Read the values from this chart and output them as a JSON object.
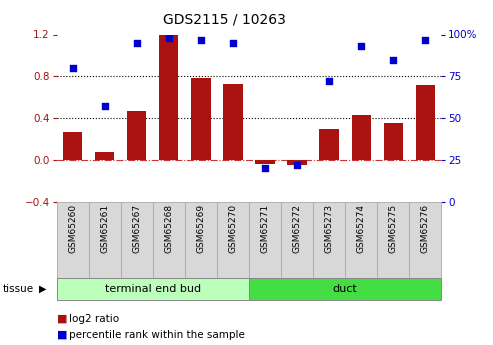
{
  "title": "GDS2115 / 10263",
  "categories": [
    "GSM65260",
    "GSM65261",
    "GSM65267",
    "GSM65268",
    "GSM65269",
    "GSM65270",
    "GSM65271",
    "GSM65272",
    "GSM65273",
    "GSM65274",
    "GSM65275",
    "GSM65276"
  ],
  "log2_ratio": [
    0.27,
    0.08,
    0.47,
    1.2,
    0.78,
    0.73,
    -0.04,
    -0.05,
    0.3,
    0.43,
    0.35,
    0.72
  ],
  "percentile_rank": [
    80,
    57,
    95,
    98,
    97,
    95,
    20,
    22,
    72,
    93,
    85,
    97
  ],
  "bar_color": "#aa1111",
  "dot_color": "#0000cc",
  "groups": [
    {
      "label": "terminal end bud",
      "start": 0,
      "end": 6,
      "color": "#bbffbb"
    },
    {
      "label": "duct",
      "start": 6,
      "end": 12,
      "color": "#44dd44"
    }
  ],
  "ylim_left": [
    -0.4,
    1.2
  ],
  "ylim_right": [
    0,
    100
  ],
  "yticks_left": [
    -0.4,
    0.0,
    0.4,
    0.8,
    1.2
  ],
  "yticks_right": [
    0,
    25,
    50,
    75,
    100
  ],
  "hlines": [
    0.0,
    0.4,
    0.8
  ],
  "zero_line_color": "#cc3333",
  "dotted_line_color": "#000000",
  "tissue_label": "tissue",
  "legend_items": [
    {
      "label": "log2 ratio",
      "color": "#aa1111"
    },
    {
      "label": "percentile rank within the sample",
      "color": "#0000cc"
    }
  ],
  "bg_color": "#ffffff",
  "tick_box_color": "#d8d8d8",
  "tick_box_edge": "#aaaaaa",
  "bar_width": 0.6
}
